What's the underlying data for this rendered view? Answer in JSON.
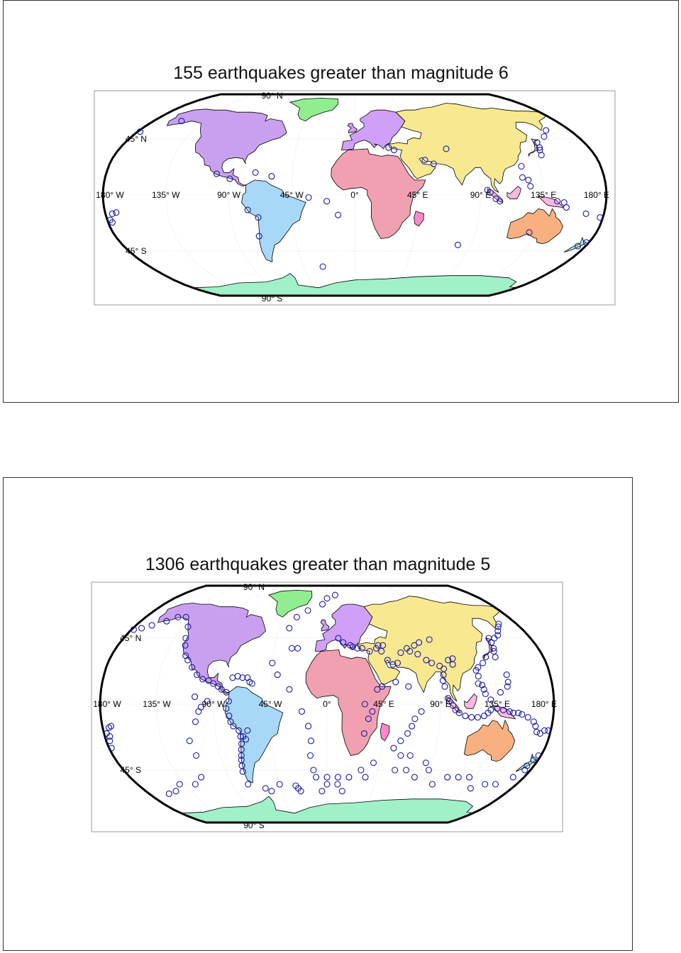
{
  "maps": [
    {
      "title": "155 earthquakes greater than magnitude 6",
      "lat_labels": [
        "90° N",
        "45° N",
        "45° S",
        "90° S"
      ],
      "lon_labels": [
        "180° W",
        "135° W",
        "90° W",
        "45° W",
        "0°",
        "45° E",
        "90° E",
        "135° E",
        "180° E"
      ],
      "quakes": [
        [
          143,
          42
        ],
        [
          142,
          38
        ],
        [
          145,
          -5
        ],
        [
          150,
          -6
        ],
        [
          152,
          -10
        ],
        [
          167,
          -15
        ],
        [
          178,
          -18
        ],
        [
          -178,
          -20
        ],
        [
          -175,
          -15
        ],
        [
          -172,
          -14
        ],
        [
          -177,
          -22
        ],
        [
          126,
          7
        ],
        [
          125,
          12
        ],
        [
          121,
          14
        ],
        [
          122,
          23
        ],
        [
          141,
          36
        ],
        [
          140,
          32
        ],
        [
          153,
          47
        ],
        [
          160,
          52
        ],
        [
          97,
          2
        ],
        [
          101,
          -3
        ],
        [
          104,
          -5
        ],
        [
          95,
          4
        ],
        [
          70,
          37
        ],
        [
          52,
          28
        ],
        [
          58,
          25
        ],
        [
          30,
          36
        ],
        [
          26,
          38
        ],
        [
          -28,
          -58
        ],
        [
          -72,
          -33
        ],
        [
          -77,
          -12
        ],
        [
          -70,
          -18
        ],
        [
          -100,
          17
        ],
        [
          -90,
          13
        ],
        [
          -155,
          60
        ],
        [
          -178,
          51
        ],
        [
          -72,
          18
        ],
        [
          -60,
          15
        ],
        [
          -20,
          -5
        ],
        [
          -33,
          -2
        ],
        [
          -12,
          -16
        ],
        [
          80,
          -40
        ],
        [
          130,
          -30
        ],
        [
          178,
          -38
        ],
        [
          174,
          -41
        ]
      ]
    },
    {
      "title": "1306 earthquakes greater than magnitude 5",
      "lat_labels": [
        "90° N",
        "45° N",
        "45° S",
        "90° S"
      ],
      "lon_labels": [
        "180° W",
        "135° W",
        "90° W",
        "45° W",
        "0°",
        "45° E",
        "90° E",
        "135° E",
        "180° E"
      ],
      "quakes": [
        [
          143,
          42
        ],
        [
          142,
          38
        ],
        [
          141,
          36
        ],
        [
          140,
          32
        ],
        [
          143,
          45
        ],
        [
          148,
          45
        ],
        [
          153,
          47
        ],
        [
          156,
          50
        ],
        [
          160,
          53
        ],
        [
          163,
          55
        ],
        [
          145,
          20
        ],
        [
          145,
          15
        ],
        [
          144,
          12
        ],
        [
          138,
          8
        ],
        [
          130,
          3
        ],
        [
          126,
          7
        ],
        [
          125,
          10
        ],
        [
          124,
          13
        ],
        [
          121,
          14
        ],
        [
          122,
          19
        ],
        [
          121,
          23
        ],
        [
          123,
          25
        ],
        [
          128,
          28
        ],
        [
          132,
          32
        ],
        [
          97,
          2
        ],
        [
          96,
          4
        ],
        [
          100,
          -1
        ],
        [
          102,
          -4
        ],
        [
          105,
          -6
        ],
        [
          110,
          -8
        ],
        [
          115,
          -9
        ],
        [
          120,
          -9
        ],
        [
          125,
          -8
        ],
        [
          128,
          -6
        ],
        [
          130,
          -4
        ],
        [
          135,
          -3
        ],
        [
          140,
          -4
        ],
        [
          145,
          -5
        ],
        [
          148,
          -6
        ],
        [
          152,
          -6
        ],
        [
          155,
          -7
        ],
        [
          160,
          -9
        ],
        [
          165,
          -12
        ],
        [
          167,
          -15
        ],
        [
          169,
          -19
        ],
        [
          172,
          -20
        ],
        [
          175,
          -18
        ],
        [
          178,
          -18
        ],
        [
          -178,
          -20
        ],
        [
          -176,
          -22
        ],
        [
          -175,
          -16
        ],
        [
          -173,
          -15
        ],
        [
          -177,
          -25
        ],
        [
          -178,
          -30
        ],
        [
          178,
          -35
        ],
        [
          176,
          -38
        ],
        [
          174,
          -42
        ],
        [
          94,
          12
        ],
        [
          93,
          16
        ],
        [
          94,
          20
        ],
        [
          95,
          24
        ],
        [
          92,
          26
        ],
        [
          86,
          28
        ],
        [
          82,
          30
        ],
        [
          76,
          34
        ],
        [
          70,
          36
        ],
        [
          68,
          38
        ],
        [
          62,
          35
        ],
        [
          58,
          28
        ],
        [
          54,
          27
        ],
        [
          50,
          30
        ],
        [
          46,
          36
        ],
        [
          42,
          38
        ],
        [
          36,
          36
        ],
        [
          30,
          38
        ],
        [
          26,
          38
        ],
        [
          22,
          39
        ],
        [
          20,
          40
        ],
        [
          14,
          42
        ],
        [
          10,
          45
        ],
        [
          48,
          40
        ],
        [
          44,
          40
        ],
        [
          75,
          40
        ],
        [
          80,
          42
        ],
        [
          90,
          44
        ],
        [
          100,
          30
        ],
        [
          103,
          27
        ],
        [
          104,
          31
        ],
        [
          -178,
          51
        ],
        [
          -172,
          52
        ],
        [
          -165,
          54
        ],
        [
          -155,
          57
        ],
        [
          -148,
          60
        ],
        [
          -140,
          60
        ],
        [
          -130,
          53
        ],
        [
          -125,
          45
        ],
        [
          -122,
          40
        ],
        [
          -118,
          33
        ],
        [
          -115,
          30
        ],
        [
          -110,
          25
        ],
        [
          -105,
          20
        ],
        [
          -100,
          17
        ],
        [
          -95,
          16
        ],
        [
          -91,
          14
        ],
        [
          -87,
          12
        ],
        [
          -84,
          10
        ],
        [
          -80,
          8
        ],
        [
          -78,
          2
        ],
        [
          -80,
          -3
        ],
        [
          -78,
          -8
        ],
        [
          -77,
          -12
        ],
        [
          -75,
          -15
        ],
        [
          -71,
          -18
        ],
        [
          -70,
          -22
        ],
        [
          -70,
          -27
        ],
        [
          -71,
          -31
        ],
        [
          -72,
          -35
        ],
        [
          -73,
          -38
        ],
        [
          -74,
          -42
        ],
        [
          -75,
          -46
        ],
        [
          -68,
          -22
        ],
        [
          -66,
          -24
        ],
        [
          -64,
          -18
        ],
        [
          -62,
          15
        ],
        [
          -60,
          14
        ],
        [
          -64,
          18
        ],
        [
          -68,
          18
        ],
        [
          -72,
          19
        ],
        [
          -76,
          18
        ],
        [
          -28,
          -58
        ],
        [
          -26,
          -60
        ],
        [
          -30,
          -56
        ],
        [
          -20,
          -5
        ],
        [
          -15,
          -15
        ],
        [
          -13,
          -25
        ],
        [
          -14,
          -35
        ],
        [
          -12,
          -45
        ],
        [
          -30,
          10
        ],
        [
          -40,
          20
        ],
        [
          -45,
          28
        ],
        [
          -30,
          38
        ],
        [
          -25,
          38
        ],
        [
          -35,
          52
        ],
        [
          -30,
          60
        ],
        [
          -20,
          65
        ],
        [
          -5,
          70
        ],
        [
          0,
          75
        ],
        [
          10,
          78
        ],
        [
          -45,
          -55
        ],
        [
          -60,
          -58
        ],
        [
          -55,
          -60
        ],
        [
          -75,
          -55
        ],
        [
          -110,
          -35
        ],
        [
          -112,
          -25
        ],
        [
          -115,
          -50
        ],
        [
          -105,
          -12
        ],
        [
          -102,
          -5
        ],
        [
          -100,
          -2
        ],
        [
          -95,
          2
        ],
        [
          -105,
          5
        ],
        [
          -125,
          -55
        ],
        [
          -140,
          -55
        ],
        [
          -150,
          -60
        ],
        [
          -160,
          -62
        ],
        [
          0,
          -55
        ],
        [
          10,
          -55
        ],
        [
          20,
          -50
        ],
        [
          30,
          -45
        ],
        [
          40,
          -40
        ],
        [
          55,
          -30
        ],
        [
          60,
          -25
        ],
        [
          65,
          -20
        ],
        [
          68,
          -15
        ],
        [
          70,
          -10
        ],
        [
          75,
          -5
        ],
        [
          62,
          -35
        ],
        [
          70,
          -45
        ],
        [
          80,
          -50
        ],
        [
          90,
          -45
        ],
        [
          100,
          -55
        ],
        [
          110,
          -50
        ],
        [
          120,
          -50
        ],
        [
          130,
          -50
        ],
        [
          140,
          -58
        ],
        [
          150,
          -55
        ],
        [
          160,
          -55
        ],
        [
          70,
          -35
        ],
        [
          85,
          -40
        ],
        [
          60,
          -45
        ],
        [
          35,
          -50
        ],
        [
          10,
          -50
        ],
        [
          0,
          -50
        ],
        [
          -10,
          -50
        ],
        [
          -5,
          -60
        ],
        [
          15,
          -60
        ],
        [
          30,
          0
        ],
        [
          36,
          -5
        ],
        [
          33,
          -10
        ],
        [
          30,
          -20
        ],
        [
          40,
          10
        ],
        [
          44,
          12
        ],
        [
          55,
          15
        ],
        [
          65,
          12
        ],
        [
          170,
          -50
        ],
        [
          175,
          -45
        ]
      ]
    }
  ]
}
